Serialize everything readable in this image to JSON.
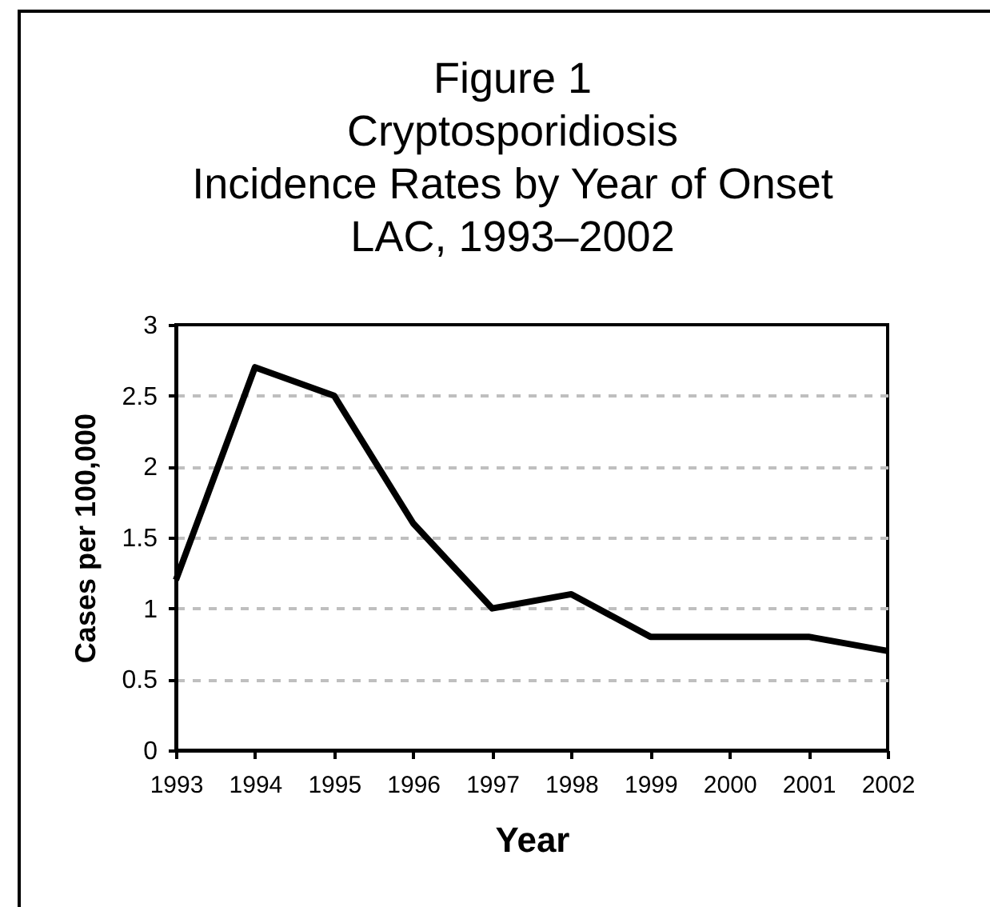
{
  "chart_data": {
    "type": "line",
    "title": "Figure 1\nCryptosporidiosis\nIncidence Rates by Year of Onset\nLAC, 1993–2002",
    "xlabel": "Year",
    "ylabel": "Cases per 100,000",
    "x": [
      1993,
      1994,
      1995,
      1996,
      1997,
      1998,
      1999,
      2000,
      2001,
      2002
    ],
    "values": [
      1.2,
      2.7,
      2.5,
      1.6,
      1.0,
      1.1,
      0.8,
      0.8,
      0.8,
      0.7
    ],
    "color": "#000000",
    "xlim": [
      1993,
      2002
    ],
    "xticks": [
      1993,
      1994,
      1995,
      1996,
      1997,
      1998,
      1999,
      2000,
      2001,
      2002
    ],
    "ylim": [
      0,
      3
    ],
    "yticks": [
      0,
      0.5,
      1,
      1.5,
      2,
      2.5,
      3
    ],
    "grid": "y",
    "line_style": "solid"
  }
}
